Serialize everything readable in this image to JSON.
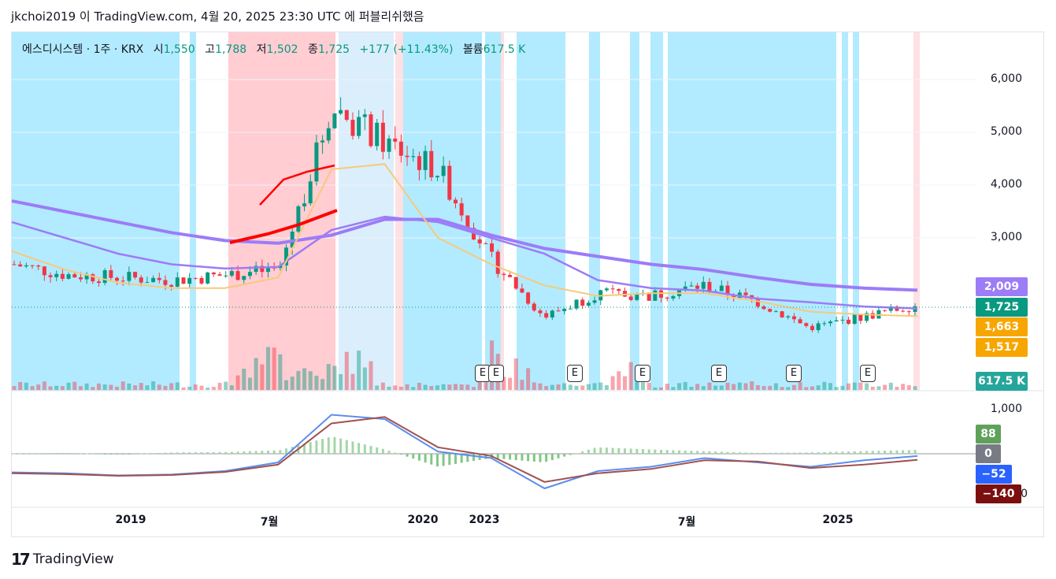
{
  "header": {
    "publisher_line": "jkchoi2019 이 TradingView.com, 4월 20, 2025 23:30 UTC 에 퍼블리쉬했음"
  },
  "legend": {
    "symbol": "에스디시스템 · 1주 · KRX",
    "open_label": "시",
    "open_value": "1,550",
    "high_label": "고",
    "high_value": "1,788",
    "low_label": "저",
    "low_value": "1,502",
    "close_label": "종",
    "close_value": "1,725",
    "change": "+177 (+11.43%)",
    "volume_label": "볼륨",
    "volume_value": "617.5 K"
  },
  "price_axis": [
    "6,000",
    "5,000",
    "4,000",
    "3,000"
  ],
  "macd_axis": [
    "1,000"
  ],
  "badges": {
    "ma_long": {
      "text": "2,009",
      "color": "#9c7cf7"
    },
    "close": {
      "text": "1,725",
      "color": "#089981"
    },
    "ma_a": {
      "text": "1,663",
      "color": "#f7a600"
    },
    "ma_b": {
      "text": "1,517",
      "color": "#f7a600"
    },
    "volume": {
      "text": "617.5 K",
      "color": "#26a69a"
    },
    "macd_hist": {
      "text": "88",
      "color": "#5fa05a"
    },
    "macd_zero": {
      "text": "0",
      "color": "#787b86"
    },
    "macd_line": {
      "text": "−52",
      "color": "#2962ff"
    },
    "macd_signal": {
      "text": "−140",
      "color": "#7b0f0f"
    },
    "macd_tail": {
      "text": "0"
    }
  },
  "time_axis": [
    "2019",
    "7월",
    "2020",
    "2023",
    "7월",
    "2025"
  ],
  "earnings_marker": "E",
  "brand": {
    "name": "TradingView",
    "icon": "tradingview-logo-icon"
  },
  "colors": {
    "up": "#089981",
    "down": "#f23645",
    "cyan_zone": "#b2ebff",
    "red_zone": "#ffcdd2",
    "ma_purple": "#9c7cf7"
  },
  "chart_data": {
    "type": "candlestick",
    "title": "",
    "y_range": [
      1200,
      6500
    ],
    "series": [
      {
        "name": "",
        "kind": "ma",
        "values": [
          3700,
          3500,
          3300,
          3100,
          2950,
          2900,
          3050,
          3350,
          3350,
          3050,
          2800,
          2650,
          2500,
          2400,
          2250,
          2120,
          2050,
          2009
        ]
      },
      {
        "name": "",
        "kind": "ma",
        "values": [
          3300,
          3000,
          2700,
          2500,
          2420,
          2450,
          3150,
          3400,
          3300,
          3000,
          2700,
          2200,
          2050,
          2000,
          1850,
          1780,
          1700,
          1663
        ]
      },
      {
        "name": "",
        "kind": "ma",
        "values": [
          2750,
          2400,
          2150,
          2050,
          2050,
          2250,
          4300,
          4400,
          3000,
          2500,
          2100,
          1900,
          1950,
          1950,
          1800,
          1600,
          1550,
          1517
        ]
      },
      {
        "name": "",
        "kind": "close",
        "values": [
          2500,
          2300,
          2250,
          2200,
          2300,
          2400,
          5500,
          4800,
          4300,
          2600,
          1500,
          1950,
          1900,
          2100,
          1800,
          1300,
          1500,
          1725
        ]
      }
    ],
    "macd": {
      "series": [
        {
          "name": "",
          "values": [
            -430,
            -450,
            -500,
            -480,
            -400,
            -200,
            900,
            800,
            50,
            -100,
            -800,
            -400,
            -300,
            -100,
            -200,
            -300,
            -150,
            -52
          ]
        },
        {
          "name": "",
          "values": [
            -450,
            -470,
            -510,
            -490,
            -420,
            -250,
            700,
            850,
            150,
            -50,
            -650,
            -450,
            -350,
            -150,
            -180,
            -330,
            -250,
            -140
          ]
        }
      ],
      "histogram": [
        10,
        20,
        -10,
        30,
        40,
        80,
        400,
        100,
        -300,
        -100,
        -200,
        150,
        100,
        60,
        20,
        30,
        60,
        88
      ]
    }
  }
}
